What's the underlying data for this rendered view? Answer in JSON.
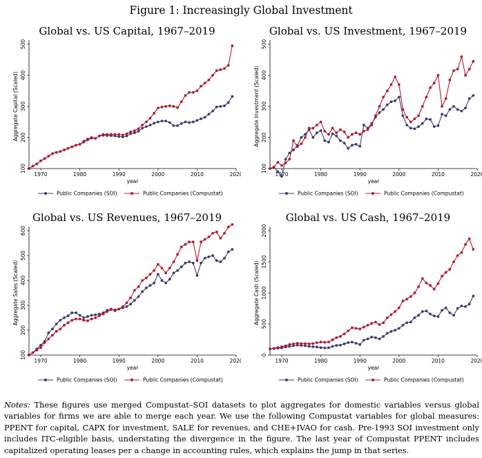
{
  "figure_title": "Figure 1: Increasingly Global Investment",
  "notes": {
    "label": "Notes:",
    "text": "These figures use merged Compustat–SOI datasets to plot aggregates for domestic variables versus global variables for firms we are able to merge each year. We use the following Compustat variables for global measures: PPENT for capital, CAPX for investment, SALE for revenues, and CHE+IVAO for cash. Pre-1993 SOI investment only includes ITC-eligible basis, understating the divergence in the figure. The last year of Compustat PPENT includes capitalized operating leases per a change in accounting rules, which explains the jump in that series."
  },
  "colors": {
    "soi": "#3b3b6e",
    "compustat": "#b01c2e",
    "axis": "#000000",
    "grid": "#ffffff"
  },
  "chart_data": [
    {
      "type": "line",
      "title": "Global vs. US Capital, 1967–2019",
      "xlabel": "year",
      "ylabel": "Aggregate Capital (Scaled)",
      "xlim": [
        1967,
        2020
      ],
      "ylim": [
        100,
        500
      ],
      "xticks": [
        1970,
        1980,
        1990,
        2000,
        2010,
        2020
      ],
      "yticks": [
        100,
        200,
        300,
        400,
        500
      ],
      "legend": "bottom",
      "x": [
        1967,
        1968,
        1969,
        1970,
        1971,
        1972,
        1973,
        1974,
        1975,
        1976,
        1977,
        1978,
        1979,
        1980,
        1981,
        1982,
        1983,
        1984,
        1985,
        1986,
        1987,
        1988,
        1989,
        1990,
        1991,
        1992,
        1993,
        1994,
        1995,
        1996,
        1997,
        1998,
        1999,
        2000,
        2001,
        2002,
        2003,
        2004,
        2005,
        2006,
        2007,
        2008,
        2009,
        2010,
        2011,
        2012,
        2013,
        2014,
        2015,
        2016,
        2017,
        2018,
        2019
      ],
      "series": [
        {
          "name": "Public Companies (SOI)",
          "values": [
            100,
            108,
            115,
            125,
            132,
            140,
            148,
            152,
            155,
            160,
            165,
            170,
            175,
            178,
            185,
            192,
            198,
            197,
            205,
            207,
            206,
            206,
            205,
            203,
            202,
            205,
            212,
            215,
            220,
            230,
            235,
            240,
            246,
            250,
            253,
            253,
            248,
            238,
            238,
            245,
            250,
            248,
            250,
            255,
            260,
            265,
            275,
            285,
            298,
            300,
            302,
            312,
            332
          ]
        },
        {
          "name": "Public Companies (Compustat)",
          "values": [
            100,
            108,
            115,
            125,
            132,
            140,
            148,
            152,
            155,
            160,
            165,
            170,
            175,
            178,
            188,
            195,
            200,
            197,
            205,
            210,
            210,
            210,
            210,
            210,
            208,
            212,
            218,
            222,
            228,
            240,
            250,
            262,
            278,
            295,
            298,
            300,
            302,
            300,
            296,
            315,
            335,
            345,
            345,
            350,
            365,
            375,
            385,
            400,
            415,
            418,
            422,
            432,
            495
          ]
        }
      ]
    },
    {
      "type": "line",
      "title": "Global vs. US Investment, 1967–2019",
      "xlabel": "year",
      "ylabel": "Aggregate Investment (Scaled)",
      "xlim": [
        1967,
        2020
      ],
      "ylim": [
        100,
        500
      ],
      "xticks": [
        1970,
        1980,
        1990,
        2000,
        2010,
        2020
      ],
      "yticks": [
        100,
        200,
        300,
        400,
        500
      ],
      "legend": "bottom",
      "x": [
        1967,
        1968,
        1969,
        1970,
        1971,
        1972,
        1973,
        1974,
        1975,
        1976,
        1977,
        1978,
        1979,
        1980,
        1981,
        1982,
        1983,
        1984,
        1985,
        1986,
        1987,
        1988,
        1989,
        1990,
        1991,
        1992,
        1993,
        1994,
        1995,
        1996,
        1997,
        1998,
        1999,
        2000,
        2001,
        2002,
        2003,
        2004,
        2005,
        2006,
        2007,
        2008,
        2009,
        2010,
        2011,
        2012,
        2013,
        2014,
        2015,
        2016,
        2017,
        2018,
        2019
      ],
      "series": [
        {
          "name": "Public Companies (SOI)",
          "values": [
            100,
            105,
            90,
            75,
            130,
            150,
            160,
            175,
            200,
            210,
            225,
            200,
            215,
            222,
            190,
            185,
            212,
            205,
            190,
            182,
            165,
            175,
            178,
            172,
            240,
            230,
            245,
            265,
            280,
            290,
            305,
            315,
            318,
            330,
            270,
            240,
            230,
            228,
            235,
            245,
            260,
            258,
            235,
            238,
            275,
            270,
            290,
            300,
            290,
            285,
            295,
            325,
            335
          ]
        },
        {
          "name": "Public Companies (Compustat)",
          "values": [
            100,
            105,
            120,
            110,
            118,
            130,
            190,
            170,
            180,
            200,
            230,
            230,
            240,
            250,
            220,
            210,
            230,
            215,
            225,
            218,
            200,
            210,
            215,
            210,
            220,
            225,
            240,
            270,
            300,
            330,
            350,
            370,
            395,
            370,
            290,
            265,
            250,
            260,
            270,
            300,
            330,
            360,
            375,
            400,
            300,
            325,
            385,
            415,
            420,
            460,
            400,
            420,
            445
          ]
        }
      ]
    },
    {
      "type": "line",
      "title": "Global vs. US Revenues, 1967–2019",
      "xlabel": "year",
      "ylabel": "Aggregate Sales (Scaled)",
      "xlim": [
        1967,
        2020
      ],
      "ylim": [
        100,
        600
      ],
      "xticks": [
        1970,
        1980,
        1990,
        2000,
        2010,
        2020
      ],
      "yticks": [
        100,
        200,
        300,
        400,
        500,
        600
      ],
      "legend": "bottom",
      "x": [
        1967,
        1968,
        1969,
        1970,
        1971,
        1972,
        1973,
        1974,
        1975,
        1976,
        1977,
        1978,
        1979,
        1980,
        1981,
        1982,
        1983,
        1984,
        1985,
        1986,
        1987,
        1988,
        1989,
        1990,
        1991,
        1992,
        1993,
        1994,
        1995,
        1996,
        1997,
        1998,
        1999,
        2000,
        2001,
        2002,
        2003,
        2004,
        2005,
        2006,
        2007,
        2008,
        2009,
        2010,
        2011,
        2012,
        2013,
        2014,
        2015,
        2016,
        2017,
        2018,
        2019
      ],
      "series": [
        {
          "name": "Public Companies (SOI)",
          "values": [
            100,
            110,
            125,
            140,
            155,
            190,
            205,
            225,
            240,
            250,
            258,
            270,
            270,
            260,
            250,
            255,
            260,
            262,
            265,
            270,
            280,
            285,
            278,
            285,
            290,
            295,
            305,
            320,
            335,
            355,
            370,
            380,
            390,
            425,
            400,
            390,
            405,
            430,
            440,
            455,
            470,
            475,
            470,
            420,
            470,
            490,
            495,
            500,
            480,
            475,
            490,
            515,
            525
          ]
        },
        {
          "name": "Public Companies (Compustat)",
          "values": [
            100,
            110,
            120,
            130,
            150,
            165,
            180,
            195,
            205,
            220,
            230,
            240,
            245,
            245,
            240,
            238,
            245,
            250,
            258,
            265,
            275,
            283,
            282,
            285,
            295,
            310,
            330,
            360,
            375,
            400,
            410,
            425,
            440,
            465,
            450,
            430,
            450,
            475,
            505,
            535,
            545,
            555,
            555,
            480,
            555,
            565,
            575,
            590,
            595,
            570,
            590,
            615,
            625
          ]
        }
      ]
    },
    {
      "type": "line",
      "title": "Global vs. US Cash, 1967–2019",
      "xlabel": "year",
      "ylabel": "Aggregate Cash (Scaled)",
      "xlim": [
        1967,
        2020
      ],
      "ylim": [
        0,
        2000
      ],
      "xticks": [
        1970,
        1980,
        1990,
        2000,
        2010,
        2020
      ],
      "yticks": [
        0,
        500,
        1000,
        1500,
        2000
      ],
      "legend": "bottom",
      "x": [
        1967,
        1968,
        1969,
        1970,
        1971,
        1972,
        1973,
        1974,
        1975,
        1976,
        1977,
        1978,
        1979,
        1980,
        1981,
        1982,
        1983,
        1984,
        1985,
        1986,
        1987,
        1988,
        1989,
        1990,
        1991,
        1992,
        1993,
        1994,
        1995,
        1996,
        1997,
        1998,
        1999,
        2000,
        2001,
        2002,
        2003,
        2004,
        2005,
        2006,
        2007,
        2008,
        2009,
        2010,
        2011,
        2012,
        2013,
        2014,
        2015,
        2016,
        2017,
        2018,
        2019
      ],
      "series": [
        {
          "name": "Public Companies (SOI)",
          "values": [
            100,
            105,
            110,
            115,
            130,
            140,
            150,
            160,
            155,
            150,
            140,
            135,
            130,
            120,
            115,
            118,
            140,
            155,
            160,
            180,
            200,
            210,
            190,
            170,
            240,
            260,
            290,
            280,
            260,
            300,
            350,
            380,
            400,
            430,
            480,
            520,
            530,
            600,
            640,
            700,
            710,
            660,
            630,
            620,
            720,
            760,
            680,
            640,
            750,
            790,
            780,
            820,
            950
          ]
        },
        {
          "name": "Public Companies (Compustat)",
          "values": [
            100,
            110,
            120,
            135,
            150,
            170,
            180,
            190,
            185,
            185,
            180,
            185,
            200,
            210,
            205,
            210,
            245,
            280,
            300,
            340,
            390,
            440,
            430,
            420,
            450,
            480,
            510,
            530,
            490,
            520,
            600,
            650,
            700,
            760,
            870,
            900,
            940,
            1000,
            1100,
            1230,
            1160,
            1120,
            1060,
            1150,
            1270,
            1330,
            1380,
            1500,
            1600,
            1650,
            1780,
            1870,
            1700
          ]
        }
      ]
    }
  ]
}
